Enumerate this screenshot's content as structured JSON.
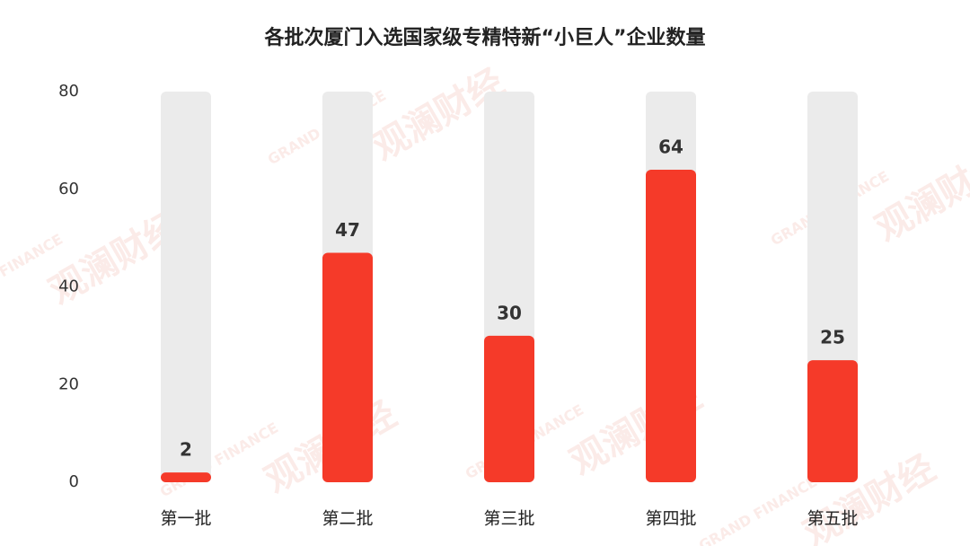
{
  "chart_data": {
    "type": "bar",
    "title": "各批次厦门入选国家级专精特新“小巨人”企业数量",
    "categories": [
      "第一批",
      "第二批",
      "第三批",
      "第四批",
      "第五批"
    ],
    "values": [
      2,
      47,
      30,
      64,
      25
    ],
    "color": "#f53a29",
    "track_color": "#ebebeb",
    "ylim": [
      0,
      80
    ],
    "yticks": [
      0,
      20,
      40,
      60,
      80
    ],
    "grid": false,
    "watermark": [
      "观澜财经",
      "GRAND FINANCE"
    ]
  }
}
